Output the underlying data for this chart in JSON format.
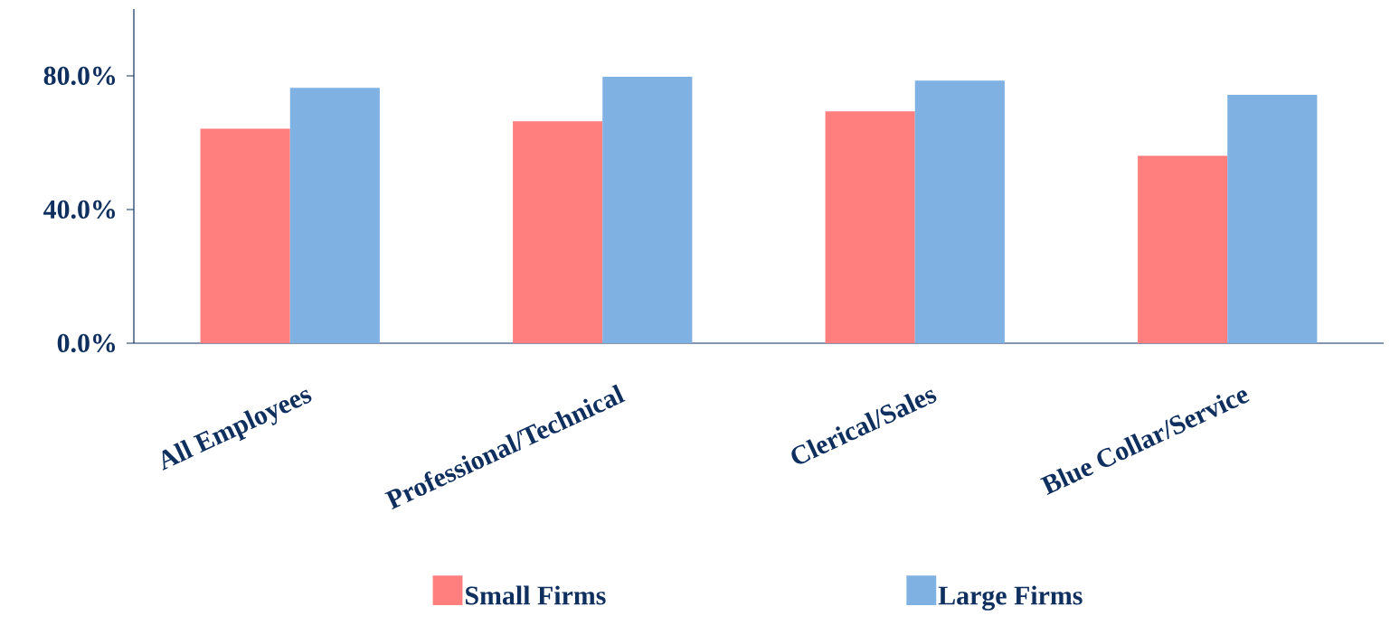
{
  "chart_data": {
    "type": "bar",
    "categories": [
      "All Employees",
      "Professional/Technical",
      "Clerical/Sales",
      "Blue Collar/Service"
    ],
    "series": [
      {
        "name": "Small Firms",
        "color": "#ff7f7f",
        "values": [
          64.2,
          66.4,
          69.4,
          56.1
        ]
      },
      {
        "name": "Large Firms",
        "color": "#80b1e3",
        "values": [
          76.4,
          79.7,
          78.6,
          74.3
        ]
      }
    ],
    "ylim": [
      0,
      100
    ],
    "yticks": [
      {
        "value": 0,
        "label": "0.0%"
      },
      {
        "value": 40,
        "label": "40.0%"
      },
      {
        "value": 80,
        "label": "80.0%"
      }
    ],
    "legend": "bottom"
  }
}
